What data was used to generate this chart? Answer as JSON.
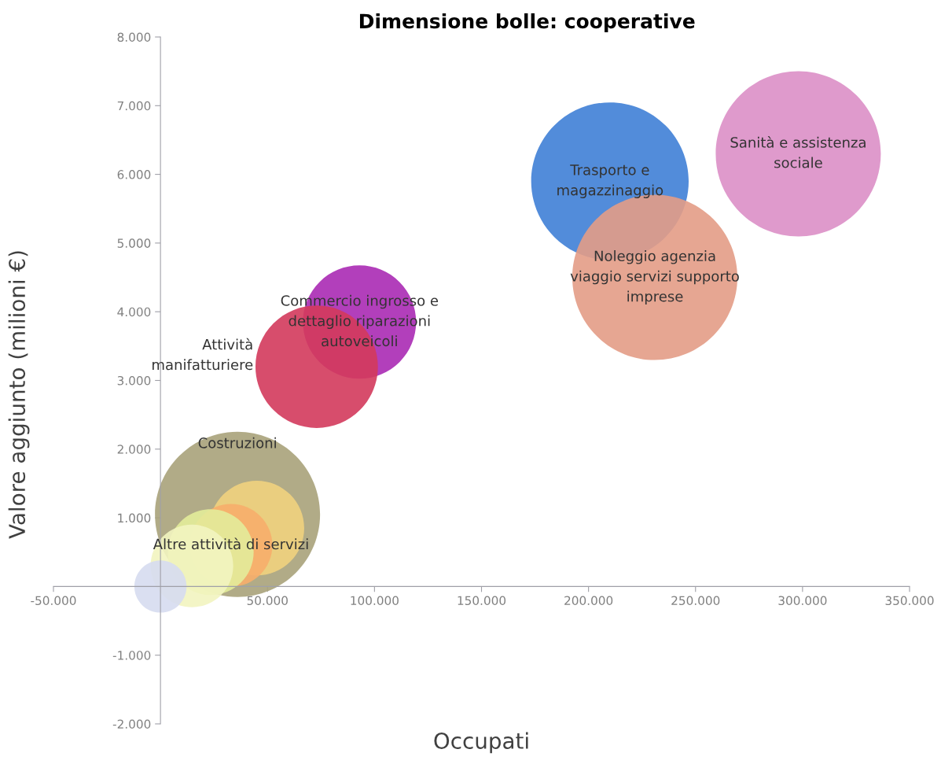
{
  "chart_data": {
    "type": "bubble",
    "title": "Dimensione bolle: cooperative",
    "xlabel": "Occupati",
    "ylabel": "Valore aggiunto (milioni €)",
    "series": [
      {
        "x": [
          210000,
          298000,
          231000,
          93000,
          73000,
          36000,
          45000,
          33000,
          23500,
          14700,
          0
        ],
        "values": [
          5900,
          6300,
          4500,
          3850,
          3200,
          1050,
          850,
          600,
          500,
          300,
          0
        ],
        "sizes": [
          0.91,
          1,
          1,
          0.47,
          0.55,
          1,
          0.33,
          0.25,
          0.27,
          0.25,
          0.1
        ],
        "value_labels": [
          "Trasporto e\nmagazzinaggio",
          "Sanità e assistenza\nsociale",
          "Noleggio agenzia\nviaggio servizi supporto\nimprese",
          "Commercio ingrosso e\ndettaglio riparazioni\nautoveicoli",
          "Attività\nmanifatturiere",
          "Costruzioni",
          null,
          "Altre attività di servizi",
          null,
          null,
          null
        ],
        "colors": [
          "#3f7fd6",
          "#db8fc6",
          "#e39c86",
          "#aa2ab4",
          "#d33a5c",
          "#a9a27a",
          "#f1d27e",
          "#f7ae6b",
          "#e3ec9a",
          "#f2f4c0",
          "#d6dcef"
        ]
      }
    ],
    "xlim": [
      -50000,
      350000
    ],
    "xticks": [
      {
        "value": -50000,
        "label": "-50.000"
      },
      {
        "value": 0,
        "label": null
      },
      {
        "value": 50000,
        "label": "50.000"
      },
      {
        "value": 100000,
        "label": "100.000"
      },
      {
        "value": 150000,
        "label": "150.000"
      },
      {
        "value": 200000,
        "label": "200.000"
      },
      {
        "value": 250000,
        "label": "250.000"
      },
      {
        "value": 300000,
        "label": "300.000"
      },
      {
        "value": 350000,
        "label": "350.000"
      }
    ],
    "ylim": [
      -2000,
      8000
    ],
    "yticks": [
      {
        "value": -2000,
        "label": "-2.000"
      },
      {
        "value": -1000,
        "label": "-1.000"
      },
      {
        "value": 0,
        "label": null
      },
      {
        "value": 1000,
        "label": "1.000"
      },
      {
        "value": 2000,
        "label": "2.000"
      },
      {
        "value": 3000,
        "label": "3.000"
      },
      {
        "value": 4000,
        "label": "4.000"
      },
      {
        "value": 5000,
        "label": "5.000"
      },
      {
        "value": 6000,
        "label": "6.000"
      },
      {
        "value": 7000,
        "label": "7.000"
      },
      {
        "value": 8000,
        "label": "8.000"
      }
    ],
    "grid": false
  }
}
